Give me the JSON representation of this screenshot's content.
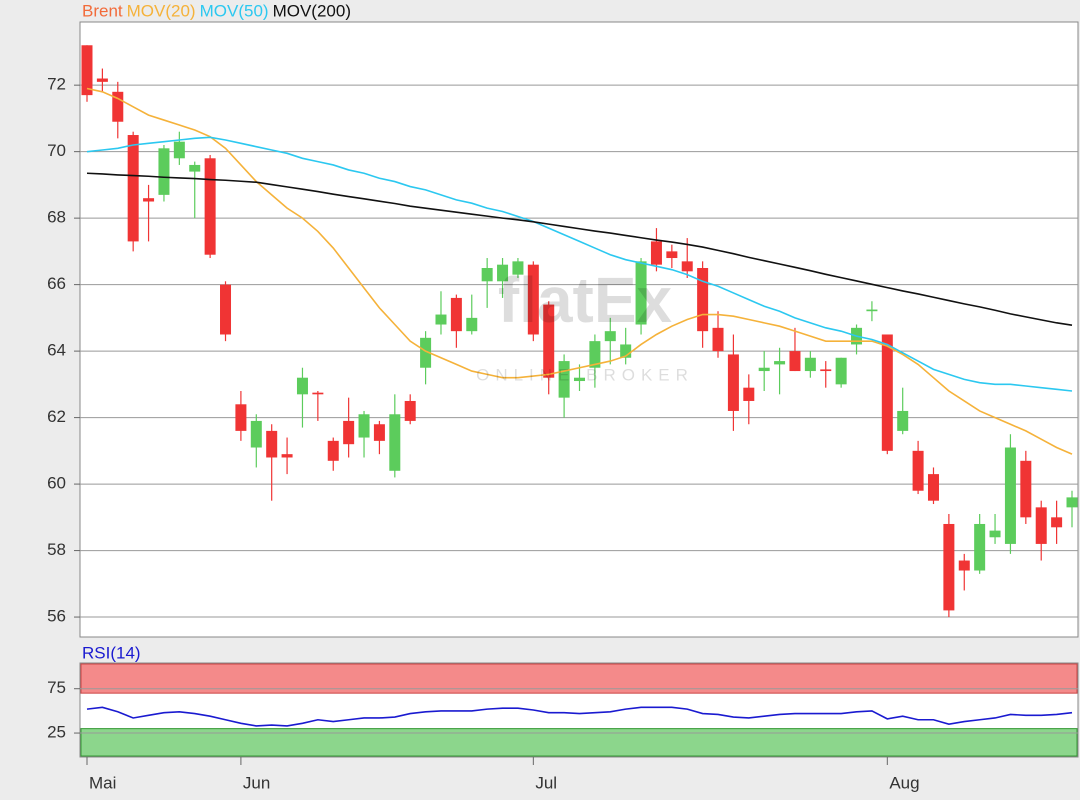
{
  "chart_data": [
    {
      "type": "candlestick",
      "watermark": {
        "logo": "flatEx",
        "tagline": "ONLINE BROKER"
      },
      "ylim": [
        55.4,
        73.9
      ],
      "yticks": [
        56,
        58,
        60,
        62,
        64,
        66,
        68,
        70,
        72
      ],
      "grid": true,
      "series": [
        {
          "name": "Brent",
          "color": "#f26b3a",
          "up_color": "#5ccc5c",
          "down_color": "#f03434",
          "open": [
            73.2,
            72.2,
            71.8,
            70.5,
            68.6,
            68.7,
            69.8,
            69.4,
            69.8,
            66.0,
            62.4,
            61.1,
            61.6,
            60.9,
            62.7,
            62.75,
            61.3,
            61.9,
            61.4,
            61.8,
            60.4,
            62.5,
            63.5,
            64.8,
            65.6,
            64.6,
            66.1,
            66.1,
            66.3,
            66.6,
            65.4,
            62.6,
            63.1,
            63.5,
            64.3,
            63.8,
            64.8,
            67.3,
            67.0,
            66.7,
            66.5,
            64.7,
            63.9,
            62.9,
            63.4,
            63.6,
            64.0,
            63.4,
            63.45,
            63.0,
            64.2,
            65.2,
            64.5,
            61.6,
            61.0,
            60.3,
            58.8,
            57.7,
            57.4,
            58.4,
            58.2,
            60.7,
            59.3,
            59.0,
            59.3
          ],
          "high": [
            73.2,
            72.5,
            72.1,
            70.6,
            69.0,
            70.2,
            70.6,
            69.7,
            69.9,
            66.1,
            62.8,
            62.1,
            61.8,
            61.4,
            63.5,
            62.8,
            61.4,
            62.6,
            62.2,
            61.9,
            62.7,
            62.7,
            64.6,
            65.8,
            65.7,
            65.7,
            66.8,
            66.8,
            66.8,
            66.7,
            65.5,
            63.9,
            63.6,
            64.5,
            65.0,
            64.7,
            66.8,
            67.7,
            67.2,
            67.4,
            66.7,
            65.2,
            64.5,
            63.3,
            64.0,
            64.1,
            64.7,
            64.0,
            63.7,
            63.8,
            64.8,
            65.5,
            64.5,
            62.9,
            61.3,
            60.5,
            59.1,
            57.9,
            59.1,
            59.1,
            61.5,
            61.0,
            59.5,
            59.5,
            59.8
          ],
          "low": [
            71.5,
            71.8,
            70.4,
            67.0,
            67.3,
            68.5,
            69.6,
            68.0,
            66.8,
            64.3,
            61.3,
            60.5,
            59.5,
            60.3,
            61.7,
            61.9,
            60.4,
            60.8,
            60.8,
            60.9,
            60.2,
            61.8,
            63.0,
            64.5,
            64.1,
            64.5,
            65.3,
            65.6,
            66.2,
            64.3,
            62.7,
            62.0,
            62.8,
            62.9,
            63.6,
            63.6,
            64.5,
            66.4,
            66.5,
            66.2,
            64.1,
            63.8,
            61.6,
            61.8,
            62.8,
            62.7,
            63.4,
            63.2,
            62.9,
            62.9,
            63.9,
            64.9,
            60.9,
            61.5,
            59.7,
            59.4,
            56.0,
            56.8,
            57.3,
            58.2,
            57.9,
            58.8,
            57.7,
            58.2,
            58.7
          ],
          "close": [
            71.7,
            72.1,
            70.9,
            67.3,
            68.5,
            70.1,
            70.3,
            69.6,
            66.9,
            64.5,
            61.6,
            61.9,
            60.8,
            60.8,
            63.2,
            62.7,
            60.7,
            61.2,
            62.1,
            61.3,
            62.1,
            61.9,
            64.4,
            65.1,
            64.6,
            65.0,
            66.5,
            66.6,
            66.7,
            64.5,
            63.2,
            63.7,
            63.2,
            64.3,
            64.6,
            64.2,
            66.7,
            66.6,
            66.8,
            66.4,
            64.6,
            64.0,
            62.2,
            62.5,
            63.5,
            63.7,
            63.4,
            63.8,
            63.4,
            63.8,
            64.7,
            65.25,
            61.0,
            62.2,
            59.8,
            59.5,
            56.2,
            57.4,
            58.8,
            58.6,
            61.1,
            59.0,
            58.2,
            58.7,
            59.6
          ]
        },
        {
          "name": "MOV(20)",
          "color": "#f5b23a",
          "values": [
            71.9,
            71.8,
            71.6,
            71.35,
            71.1,
            70.95,
            70.8,
            70.65,
            70.45,
            70.1,
            69.6,
            69.1,
            68.7,
            68.3,
            68.0,
            67.6,
            67.1,
            66.5,
            65.9,
            65.3,
            64.8,
            64.3,
            64.0,
            63.8,
            63.6,
            63.4,
            63.3,
            63.2,
            63.2,
            63.25,
            63.3,
            63.4,
            63.5,
            63.6,
            63.7,
            63.85,
            64.2,
            64.5,
            64.75,
            64.95,
            65.1,
            65.1,
            65.05,
            64.95,
            64.85,
            64.75,
            64.6,
            64.45,
            64.3,
            64.3,
            64.3,
            64.3,
            64.15,
            63.9,
            63.6,
            63.2,
            62.8,
            62.5,
            62.2,
            62.0,
            61.8,
            61.6,
            61.35,
            61.1,
            60.9
          ]
        },
        {
          "name": "MOV(50)",
          "color": "#2cc8f0",
          "values": [
            70.0,
            70.05,
            70.1,
            70.2,
            70.25,
            70.3,
            70.35,
            70.4,
            70.43,
            70.35,
            70.25,
            70.15,
            70.05,
            69.95,
            69.8,
            69.7,
            69.6,
            69.45,
            69.35,
            69.2,
            69.1,
            68.95,
            68.85,
            68.7,
            68.55,
            68.45,
            68.3,
            68.2,
            68.05,
            67.9,
            67.7,
            67.5,
            67.3,
            67.1,
            66.9,
            66.75,
            66.65,
            66.55,
            66.45,
            66.3,
            66.1,
            65.95,
            65.75,
            65.55,
            65.35,
            65.2,
            65.0,
            64.85,
            64.7,
            64.6,
            64.45,
            64.35,
            64.2,
            63.95,
            63.7,
            63.45,
            63.3,
            63.15,
            63.05,
            63.0,
            63.0,
            62.95,
            62.9,
            62.85,
            62.8
          ]
        },
        {
          "name": "MOV(200)",
          "color": "#111111",
          "values": [
            69.35,
            69.33,
            69.3,
            69.28,
            69.26,
            69.23,
            69.21,
            69.19,
            69.16,
            69.14,
            69.11,
            69.08,
            69.01,
            68.94,
            68.87,
            68.8,
            68.72,
            68.65,
            68.58,
            68.51,
            68.44,
            68.36,
            68.3,
            68.24,
            68.18,
            68.12,
            68.06,
            68.0,
            67.95,
            67.89,
            67.82,
            67.75,
            67.68,
            67.61,
            67.55,
            67.48,
            67.41,
            67.34,
            67.28,
            67.21,
            67.13,
            67.03,
            66.93,
            66.82,
            66.72,
            66.62,
            66.52,
            66.42,
            66.31,
            66.21,
            66.11,
            66.01,
            65.91,
            65.81,
            65.72,
            65.62,
            65.52,
            65.42,
            65.33,
            65.23,
            65.12,
            65.03,
            64.94,
            64.85,
            64.78
          ]
        }
      ]
    },
    {
      "type": "line",
      "ylim": [
        -2,
        104
      ],
      "yticks": [
        25,
        75
      ],
      "grid": true,
      "overbought": 70,
      "oversold": 30,
      "overbought_color": "#f48a8a",
      "oversold_color": "#8cd68c",
      "categories": [
        "Mai",
        null,
        null,
        null,
        null,
        null,
        null,
        null,
        null,
        null,
        "Jun",
        null,
        null,
        null,
        null,
        null,
        null,
        null,
        null,
        null,
        null,
        null,
        null,
        null,
        null,
        null,
        null,
        null,
        null,
        "Jul",
        null,
        null,
        null,
        null,
        null,
        null,
        null,
        null,
        null,
        null,
        null,
        null,
        null,
        null,
        null,
        null,
        null,
        null,
        null,
        null,
        null,
        null,
        "Aug",
        null,
        null,
        null,
        null,
        null,
        null,
        null,
        null,
        null,
        null,
        null,
        null
      ],
      "series": [
        {
          "name": "RSI(14)",
          "color": "#1a1ad0",
          "values": [
            52,
            54,
            49,
            42,
            45,
            48,
            49,
            47,
            44,
            40,
            36,
            33,
            34,
            33,
            36,
            40,
            38,
            40,
            42,
            42,
            43,
            47,
            49,
            50,
            50,
            50,
            52,
            53,
            53,
            51,
            48,
            48,
            47,
            48,
            49,
            52,
            54,
            54,
            54,
            52,
            47,
            46,
            43,
            42,
            44,
            46,
            47,
            47,
            47,
            47,
            49,
            50,
            41,
            44,
            40,
            40,
            35,
            38,
            40,
            42,
            46,
            45,
            45,
            46,
            48
          ]
        }
      ]
    }
  ]
}
